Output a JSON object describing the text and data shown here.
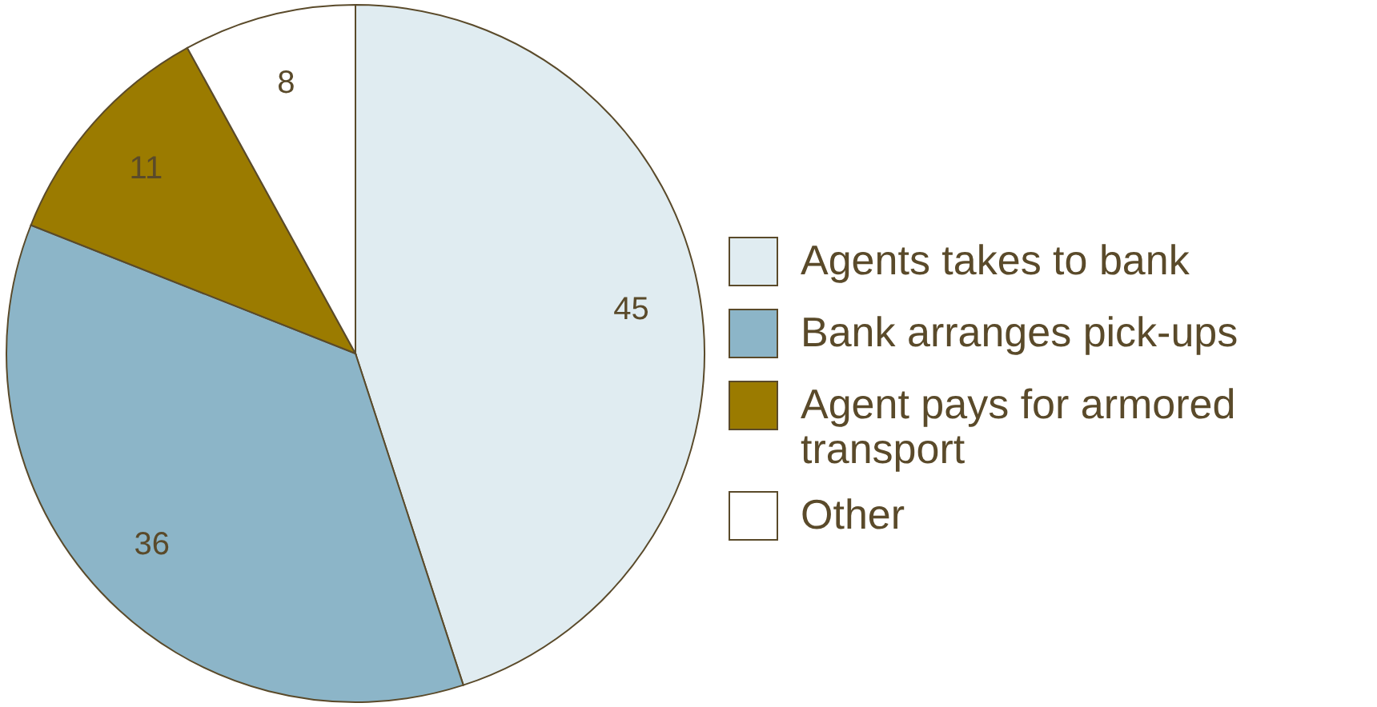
{
  "chart_data": {
    "type": "pie",
    "categories": [
      "Agents takes to bank",
      "Bank arranges pick-ups",
      "Agent pays for armored transport",
      "Other"
    ],
    "values": [
      45,
      36,
      11,
      8
    ],
    "colors": [
      "#e0ecf1",
      "#8cb5c8",
      "#9b7b00",
      "#ffffff"
    ],
    "data_labels": true,
    "legend": "right"
  }
}
